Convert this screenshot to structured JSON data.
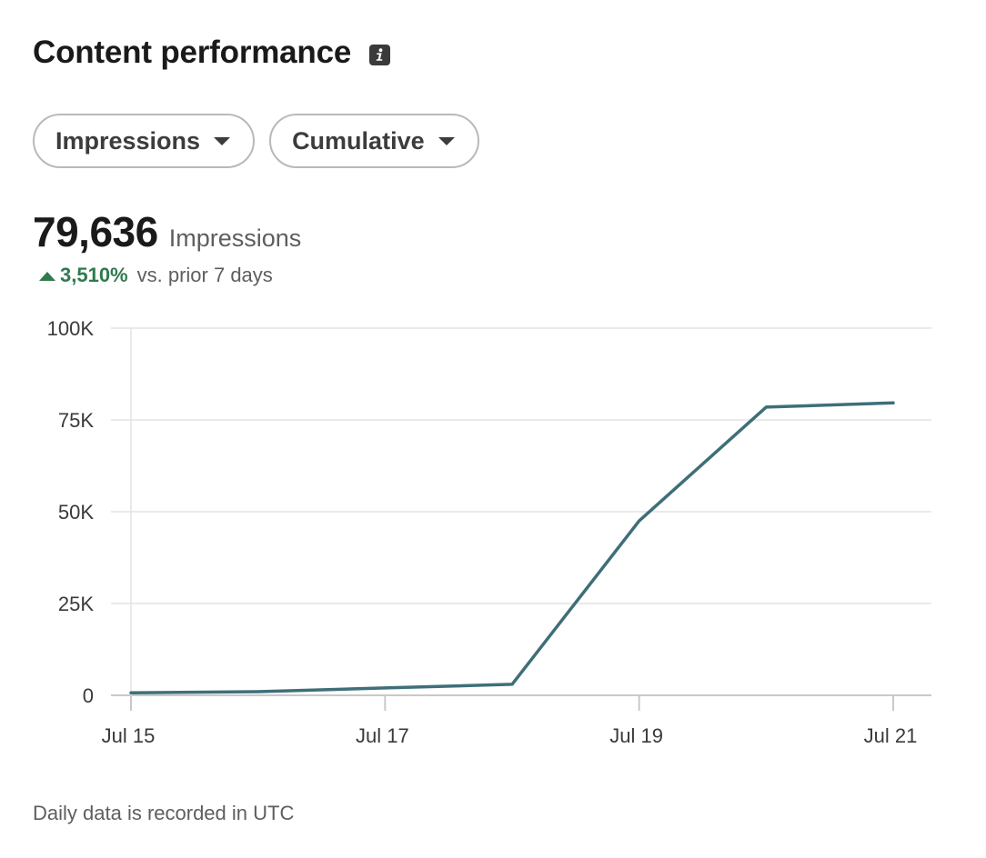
{
  "header": {
    "title": "Content performance",
    "info_icon": "info-icon"
  },
  "filters": [
    {
      "label": "Impressions",
      "icon": "caret-down-icon"
    },
    {
      "label": "Cumulative",
      "icon": "caret-down-icon"
    }
  ],
  "summary": {
    "value": "79,636",
    "label": "Impressions",
    "change_pct": "3,510%",
    "change_text": "vs. prior 7 days",
    "change_color": "#2f7a4e",
    "change_icon": "triangle-up-icon"
  },
  "chart_data": {
    "type": "line",
    "x": [
      "2023-07-15",
      "2023-07-16",
      "2023-07-17",
      "2023-07-18",
      "2023-07-19",
      "2023-07-20",
      "2023-07-21"
    ],
    "series": [
      {
        "values": [
          700,
          1000,
          2000,
          3000,
          47500,
          78500,
          79636
        ],
        "color": "#3e6f78"
      }
    ],
    "xticks": [
      {
        "x": "2023-07-15",
        "label": "Jul 15"
      },
      {
        "x": "2023-07-17",
        "label": "Jul 17"
      },
      {
        "x": "2023-07-19",
        "label": "Jul 19"
      },
      {
        "x": "2023-07-21",
        "label": "Jul 21"
      }
    ],
    "yticks": [
      {
        "value": 0,
        "label": "0"
      },
      {
        "value": 25000,
        "label": "25K"
      },
      {
        "value": 50000,
        "label": "50K"
      },
      {
        "value": 75000,
        "label": "75K"
      },
      {
        "value": 100000,
        "label": "100K"
      }
    ],
    "ylim": [
      0,
      100000
    ],
    "grid": true,
    "legend": "none"
  },
  "footnote": "Daily data is recorded in UTC"
}
